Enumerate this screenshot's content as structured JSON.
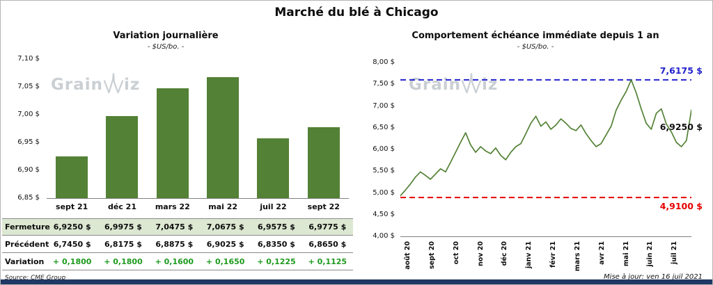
{
  "page": {
    "title": "Marché du blé à Chicago"
  },
  "watermark": {
    "prefix": "Grain",
    "suffix": "iz"
  },
  "chart_data": [
    {
      "type": "bar",
      "title": "Variation journalière",
      "subtitle": "- $US/bo. -",
      "categories": [
        "sept 21",
        "déc 21",
        "mars 22",
        "mai 22",
        "juil 22",
        "sept 22"
      ],
      "values": [
        6.925,
        6.9975,
        7.0475,
        7.0675,
        6.9575,
        6.9775
      ],
      "ylim": [
        6.85,
        7.1
      ],
      "y_ticks": [
        6.85,
        6.9,
        6.95,
        7.0,
        7.05,
        7.1
      ],
      "bar_color": "#538135",
      "grid": false,
      "legend": "none"
    },
    {
      "type": "line",
      "title": "Comportement échéance immédiate depuis 1 an",
      "subtitle": "- $US/bo. -",
      "categories": [
        "août 20",
        "sept 20",
        "oct 20",
        "nov 20",
        "déc 20",
        "janv 21",
        "févr 21",
        "mars 21",
        "avr 21",
        "mai 21",
        "juin 21",
        "juil 21"
      ],
      "values": [
        4.95,
        5.08,
        5.22,
        5.38,
        5.5,
        5.42,
        5.33,
        5.45,
        5.57,
        5.5,
        5.72,
        5.95,
        6.18,
        6.4,
        6.12,
        5.95,
        6.08,
        5.98,
        5.92,
        6.05,
        5.88,
        5.78,
        5.95,
        6.08,
        6.15,
        6.38,
        6.62,
        6.78,
        6.55,
        6.65,
        6.48,
        6.58,
        6.72,
        6.62,
        6.5,
        6.45,
        6.58,
        6.38,
        6.22,
        6.08,
        6.15,
        6.35,
        6.55,
        6.92,
        7.15,
        7.35,
        7.6175,
        7.32,
        6.95,
        6.62,
        6.48,
        6.85,
        6.95,
        6.6,
        6.42,
        6.18,
        6.08,
        6.22,
        6.925
      ],
      "ylim": [
        4.0,
        8.0
      ],
      "y_ticks": [
        4.0,
        4.5,
        5.0,
        5.5,
        6.0,
        6.5,
        7.0,
        7.5,
        8.0
      ],
      "line_color": "#538135",
      "levels": {
        "high": 7.6175,
        "low": 4.91,
        "last": 6.925
      },
      "labels": {
        "high": "7,6175 $",
        "last": "6,9250 $",
        "low": "4,9100 $"
      },
      "colors": {
        "high": "#2222cc",
        "low": "#e60000",
        "last": "#111111"
      },
      "grid": false,
      "legend": "none"
    }
  ],
  "table": {
    "rows": [
      {
        "key": "fermeture",
        "label": "Fermeture",
        "values": [
          "6,9250 $",
          "6,9975 $",
          "7,0475 $",
          "7,0675 $",
          "6,9575 $",
          "6,9775 $"
        ]
      },
      {
        "key": "precedent",
        "label": "Précédent",
        "values": [
          "6,7450 $",
          "6,8175 $",
          "6,8875 $",
          "6,9025 $",
          "6,8350 $",
          "6,8650 $"
        ]
      },
      {
        "key": "variation",
        "label": "Variation",
        "values": [
          "+ 0,1800",
          "+ 0,1800",
          "+ 0,1600",
          "+ 0,1650",
          "+ 0,1225",
          "+ 0,1125"
        ]
      }
    ]
  },
  "footer": {
    "source": "Source: CME Group",
    "updated": "Mise à jour: ven 16 juil 2021"
  }
}
